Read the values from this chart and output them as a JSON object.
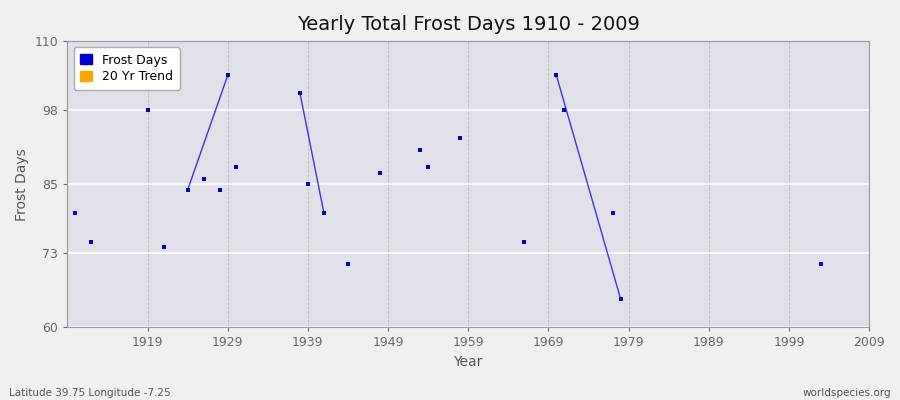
{
  "title": "Yearly Total Frost Days 1910 - 2009",
  "xlabel": "Year",
  "ylabel": "Frost Days",
  "xlim": [
    1909,
    2009
  ],
  "ylim": [
    60,
    110
  ],
  "xticks": [
    1919,
    1929,
    1939,
    1949,
    1959,
    1969,
    1979,
    1989,
    1999,
    2009
  ],
  "yticks": [
    60,
    73,
    85,
    98,
    110
  ],
  "fig_bg_color": "#f0f0f0",
  "plot_bg_color": "#e0e0e8",
  "frost_days_color": "#0000cc",
  "trend_color": "#FFA500",
  "frost_points": [
    [
      1910,
      80
    ],
    [
      1912,
      75
    ],
    [
      1919,
      98
    ],
    [
      1921,
      74
    ],
    [
      1924,
      84
    ],
    [
      1926,
      86
    ],
    [
      1928,
      84
    ],
    [
      1929,
      104
    ],
    [
      1930,
      88
    ],
    [
      1938,
      101
    ],
    [
      1939,
      85
    ],
    [
      1941,
      80
    ],
    [
      1944,
      71
    ],
    [
      1948,
      87
    ],
    [
      1953,
      91
    ],
    [
      1954,
      88
    ],
    [
      1958,
      93
    ],
    [
      1966,
      75
    ],
    [
      1970,
      104
    ],
    [
      1971,
      98
    ],
    [
      1977,
      80
    ],
    [
      1978,
      65
    ],
    [
      2003,
      71
    ]
  ],
  "trend_segments": [
    [
      [
        1924,
        84
      ],
      [
        1929,
        104
      ]
    ],
    [
      [
        1938,
        101
      ],
      [
        1941,
        80
      ]
    ],
    [
      [
        1970,
        104
      ],
      [
        1978,
        65
      ]
    ]
  ],
  "bottom_left_text": "Latitude 39.75 Longitude -7.25",
  "bottom_right_text": "worldspecies.org",
  "title_fontsize": 14,
  "axis_label_fontsize": 10,
  "tick_fontsize": 9,
  "legend_fontsize": 9
}
